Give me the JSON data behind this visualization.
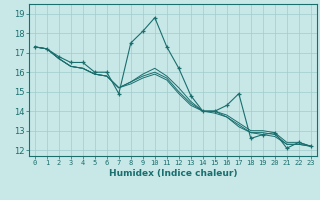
{
  "xlabel": "Humidex (Indice chaleur)",
  "xlim": [
    -0.5,
    23.5
  ],
  "ylim": [
    11.7,
    19.5
  ],
  "yticks": [
    12,
    13,
    14,
    15,
    16,
    17,
    18,
    19
  ],
  "xticks": [
    0,
    1,
    2,
    3,
    4,
    5,
    6,
    7,
    8,
    9,
    10,
    11,
    12,
    13,
    14,
    15,
    16,
    17,
    18,
    19,
    20,
    21,
    22,
    23
  ],
  "background_color": "#c8e8e8",
  "grid_color": "#a0cccc",
  "line_color": "#1a6e6e",
  "line1": [
    17.3,
    17.2,
    16.8,
    16.5,
    16.5,
    16.0,
    16.0,
    14.9,
    17.5,
    18.1,
    18.8,
    17.3,
    16.2,
    14.8,
    14.0,
    14.0,
    14.3,
    14.9,
    12.6,
    12.8,
    12.9,
    12.1,
    12.4,
    12.2
  ],
  "line2": [
    17.3,
    17.2,
    16.7,
    16.3,
    16.2,
    15.9,
    15.8,
    15.2,
    15.5,
    15.9,
    16.2,
    15.8,
    15.2,
    14.5,
    14.0,
    14.0,
    13.8,
    13.4,
    13.0,
    13.0,
    12.9,
    12.4,
    12.4,
    12.2
  ],
  "line3": [
    17.3,
    17.2,
    16.7,
    16.3,
    16.2,
    15.9,
    15.8,
    15.2,
    15.5,
    15.8,
    16.0,
    15.7,
    15.0,
    14.4,
    14.0,
    14.0,
    13.7,
    13.3,
    12.9,
    12.9,
    12.8,
    12.3,
    12.3,
    12.2
  ],
  "line4": [
    17.3,
    17.2,
    16.7,
    16.3,
    16.2,
    15.9,
    15.8,
    15.2,
    15.4,
    15.7,
    15.9,
    15.6,
    14.9,
    14.3,
    14.0,
    13.9,
    13.7,
    13.2,
    12.9,
    12.8,
    12.7,
    12.3,
    12.3,
    12.2
  ]
}
